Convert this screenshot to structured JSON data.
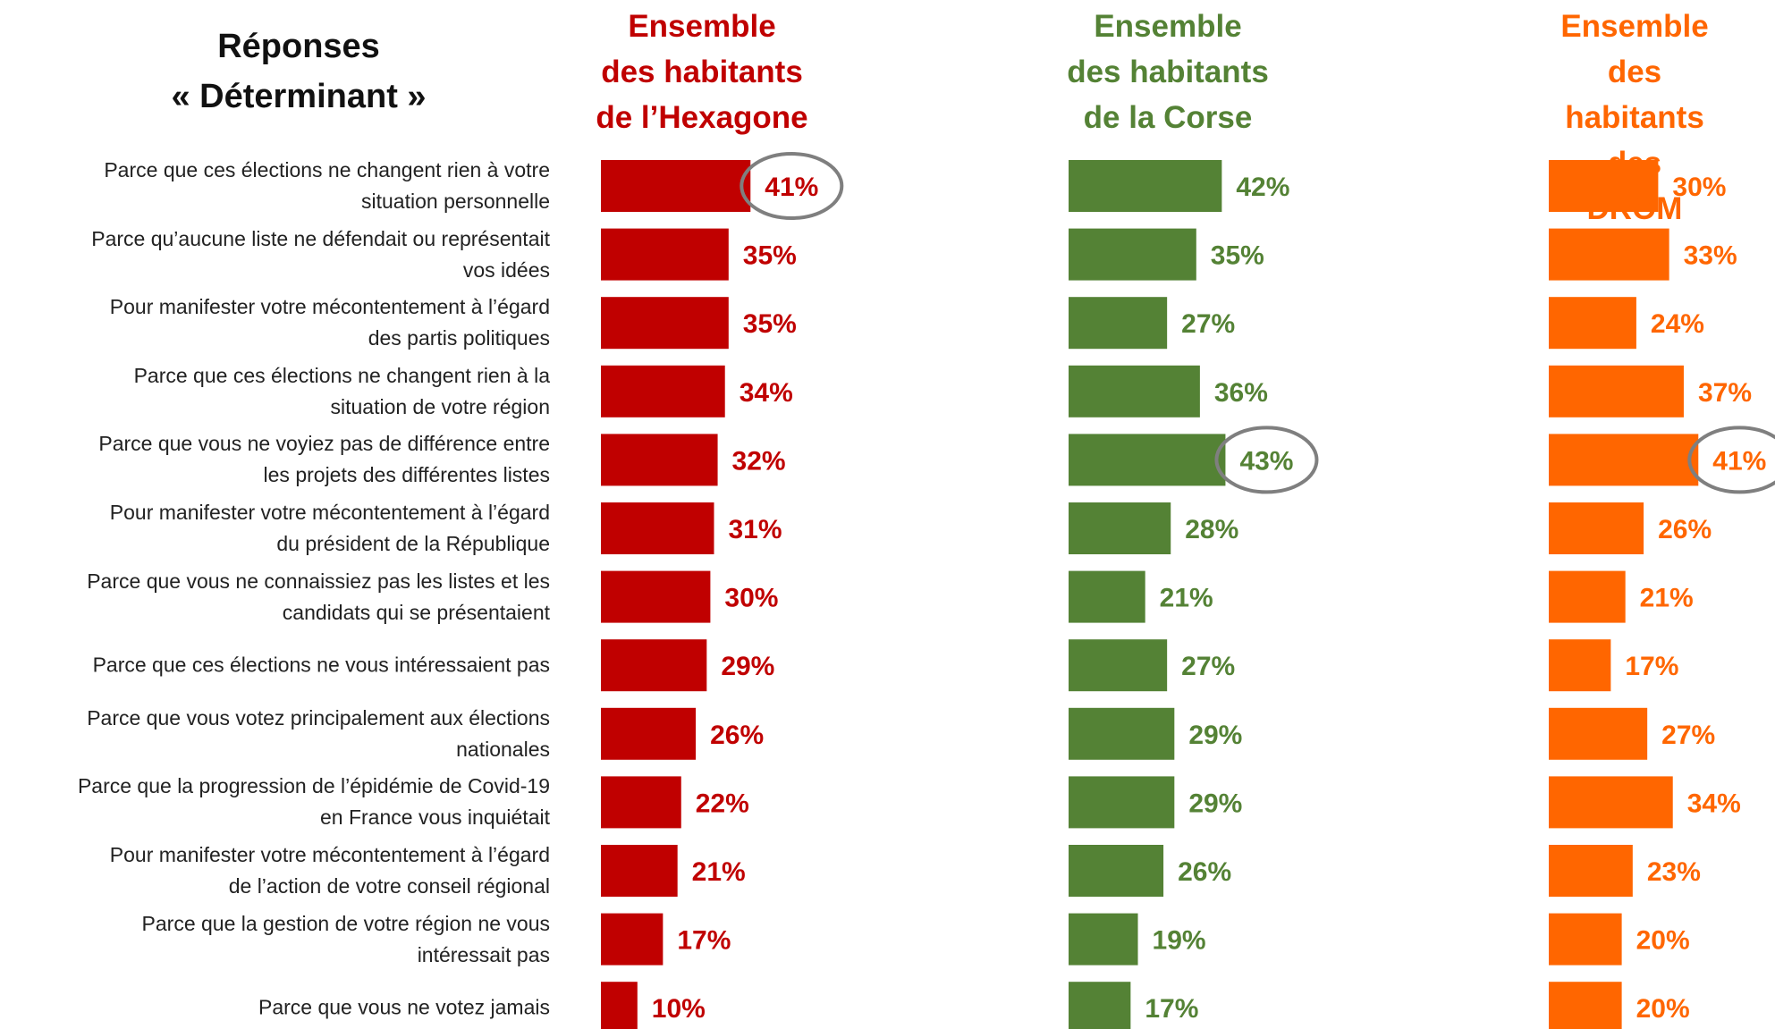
{
  "title": "Réponses\n« Déterminant »",
  "chart_data": [
    {
      "type": "bar",
      "orientation": "horizontal",
      "title": "Ensemble\ndes habitants\nde l’Hexagone",
      "color": "#c00000",
      "highlighted": 0,
      "categories": [
        "Parce que ces élections ne changent rien à votre\nsituation personnelle",
        "Parce qu’aucune liste ne défendait ou représentait\nvos idées",
        "Pour manifester votre mécontentement à l’égard\ndes partis politiques",
        "Parce que ces élections ne changent rien à la\nsituation de votre région",
        "Parce que vous ne voyiez pas de différence entre\nles projets des différentes listes",
        "Pour manifester votre mécontentement à l’égard\ndu président de la République",
        "Parce que vous ne connaissiez pas les listes et les\ncandidats qui se présentaient",
        "Parce que ces élections ne vous intéressaient pas",
        "Parce que vous votez principalement aux élections\nnationales",
        "Parce que la progression de l’épidémie de Covid-19\nen France vous inquiétait",
        "Pour manifester votre mécontentement à l’égard\nde l’action de votre conseil régional",
        "Parce que la gestion de votre région ne vous\nintéressait pas",
        "Parce que vous ne votez jamais"
      ],
      "values": [
        41,
        35,
        35,
        34,
        32,
        31,
        30,
        29,
        26,
        22,
        21,
        17,
        10
      ],
      "value_labels": [
        "41%",
        "35%",
        "35%",
        "34%",
        "32%",
        "31%",
        "30%",
        "29%",
        "26%",
        "22%",
        "21%",
        "17%",
        "10%"
      ]
    },
    {
      "type": "bar",
      "orientation": "horizontal",
      "title": "Ensemble\ndes habitants\nde la Corse",
      "color": "#548235",
      "highlighted": 4,
      "values": [
        42,
        35,
        27,
        36,
        43,
        28,
        21,
        27,
        29,
        29,
        26,
        19,
        17
      ],
      "value_labels": [
        "42%",
        "35%",
        "27%",
        "36%",
        "43%",
        "28%",
        "21%",
        "27%",
        "29%",
        "29%",
        "26%",
        "19%",
        "17%"
      ]
    },
    {
      "type": "bar",
      "orientation": "horizontal",
      "title": "Ensemble\ndes habitants\ndes DROM",
      "color": "#ff6600",
      "highlighted": 4,
      "values": [
        30,
        33,
        24,
        37,
        41,
        26,
        21,
        17,
        27,
        34,
        23,
        20,
        20
      ],
      "value_labels": [
        "30%",
        "33%",
        "24%",
        "37%",
        "41%",
        "26%",
        "21%",
        "17%",
        "27%",
        "34%",
        "23%",
        "20%",
        "20%"
      ]
    }
  ]
}
